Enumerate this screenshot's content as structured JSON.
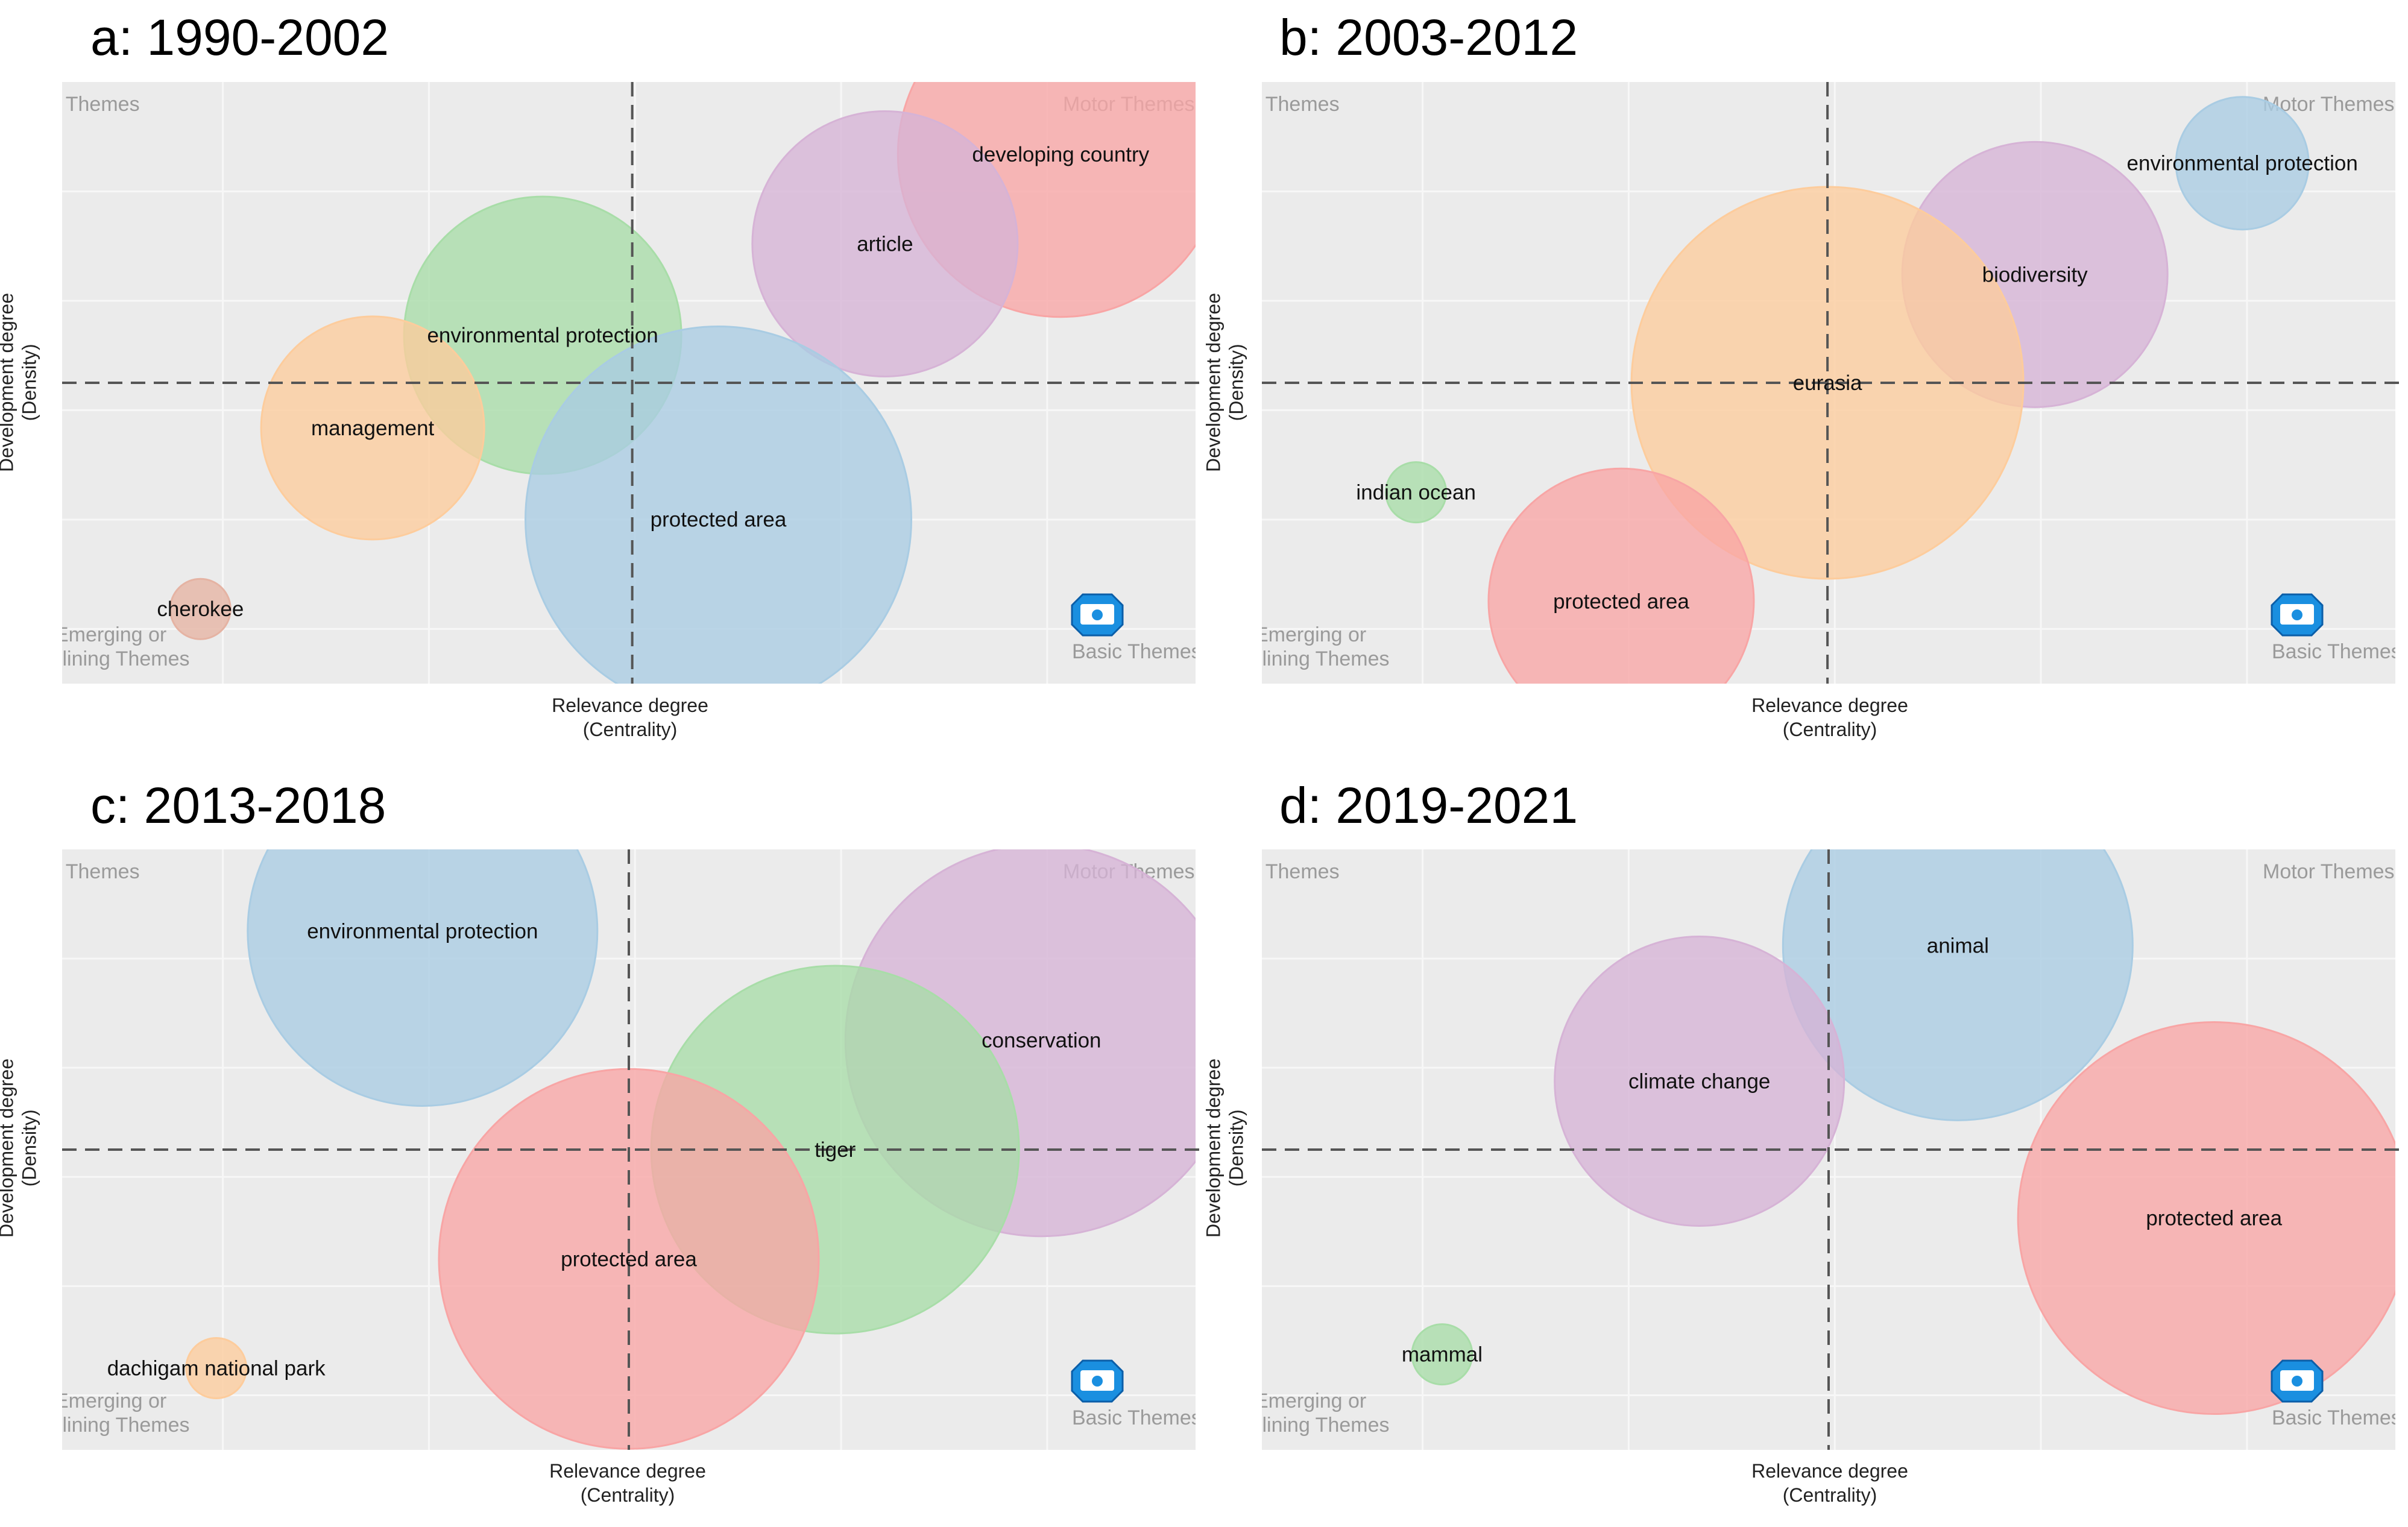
{
  "figure": {
    "panels": [
      "panel_a",
      "panel_b",
      "panel_c",
      "panel_d"
    ]
  },
  "chart_data": [
    {
      "id": "panel_a",
      "type": "scatter",
      "title": "a: 1990-2002",
      "xlabel_line1": "Relevance degree",
      "xlabel_line2": "(Centrality)",
      "ylabel_line1": "Development degree",
      "ylabel_line2": "(Density)",
      "quadrants": {
        "top_left": "Niche Themes",
        "top_right": "Motor Themes",
        "bottom_left_line1": "Emerging or",
        "bottom_left_line2": "Declining Themes",
        "bottom_right": "Basic Themes"
      },
      "xlim": [
        0,
        100
      ],
      "ylim": [
        0,
        100
      ],
      "x_divider": 50.3,
      "y_divider": 50,
      "points": [
        {
          "label": "developing country",
          "x": 88.1,
          "y": 88.0,
          "size": 108,
          "color": "#F8A5A5"
        },
        {
          "label": "article",
          "x": 72.6,
          "y": 73.1,
          "size": 88,
          "color": "#D6B3D6"
        },
        {
          "label": "environmental protection",
          "x": 42.4,
          "y": 57.9,
          "size": 92,
          "color": "#A8DDA8"
        },
        {
          "label": "management",
          "x": 27.4,
          "y": 42.5,
          "size": 74,
          "color": "#FDCC9C"
        },
        {
          "label": "protected area",
          "x": 57.9,
          "y": 27.3,
          "size": 128,
          "color": "#A9CCE3"
        },
        {
          "label": "cherokee",
          "x": 12.2,
          "y": 12.4,
          "size": 20,
          "color": "#E5B3A3"
        }
      ]
    },
    {
      "id": "panel_b",
      "type": "scatter",
      "title": "b: 2003-2012",
      "xlabel_line1": "Relevance degree",
      "xlabel_line2": "(Centrality)",
      "ylabel_line1": "Development degree",
      "ylabel_line2": "(Density)",
      "quadrants": {
        "top_left": "Niche Themes",
        "top_right": "Motor Themes",
        "bottom_left_line1": "Emerging or",
        "bottom_left_line2": "Declining Themes",
        "bottom_right": "Basic Themes"
      },
      "xlim": [
        0,
        100
      ],
      "ylim": [
        0,
        100
      ],
      "x_divider": 49.9,
      "y_divider": 50,
      "points": [
        {
          "label": "environmental protection",
          "x": 86.5,
          "y": 86.5,
          "size": 44,
          "color": "#A9CCE3"
        },
        {
          "label": "biodiversity",
          "x": 68.2,
          "y": 68.0,
          "size": 88,
          "color": "#D6B3D6"
        },
        {
          "label": "eurasia",
          "x": 49.9,
          "y": 50.0,
          "size": 130,
          "color": "#FDCC9C"
        },
        {
          "label": "indian ocean",
          "x": 13.6,
          "y": 31.8,
          "size": 20,
          "color": "#A8DDA8"
        },
        {
          "label": "protected area",
          "x": 31.7,
          "y": 13.7,
          "size": 88,
          "color": "#F8A5A5"
        }
      ]
    },
    {
      "id": "panel_c",
      "type": "scatter",
      "title": "c: 2013-2018",
      "xlabel_line1": "Relevance degree",
      "xlabel_line2": "(Centrality)",
      "ylabel_line1": "Development degree",
      "ylabel_line2": "(Density)",
      "quadrants": {
        "top_left": "Niche Themes",
        "top_right": "Motor Themes",
        "bottom_left_line1": "Emerging or",
        "bottom_left_line2": "Declining Themes",
        "bottom_right": "Basic Themes"
      },
      "xlim": [
        0,
        100
      ],
      "ylim": [
        0,
        100
      ],
      "x_divider": 50.0,
      "y_divider": 50,
      "points": [
        {
          "label": "environmental protection",
          "x": 31.8,
          "y": 86.4,
          "size": 116,
          "color": "#A9CCE3"
        },
        {
          "label": "conservation",
          "x": 86.4,
          "y": 68.2,
          "size": 130,
          "color": "#D6B3D6"
        },
        {
          "label": "tiger",
          "x": 68.2,
          "y": 50.0,
          "size": 122,
          "color": "#A8DDA8"
        },
        {
          "label": "protected area",
          "x": 50.0,
          "y": 31.8,
          "size": 126,
          "color": "#F8A5A5"
        },
        {
          "label": "dachigam national park",
          "x": 13.6,
          "y": 13.6,
          "size": 20,
          "color": "#FDCC9C"
        }
      ]
    },
    {
      "id": "panel_d",
      "type": "scatter",
      "title": "d: 2019-2021",
      "xlabel_line1": "Relevance degree",
      "xlabel_line2": "(Centrality)",
      "ylabel_line1": "Development degree",
      "ylabel_line2": "(Density)",
      "quadrants": {
        "top_left": "Niche Themes",
        "top_right": "Motor Themes",
        "bottom_left_line1": "Emerging or",
        "bottom_left_line2": "Declining Themes",
        "bottom_right": "Basic Themes"
      },
      "xlim": [
        0,
        100
      ],
      "ylim": [
        0,
        100
      ],
      "x_divider": 50.0,
      "y_divider": 50,
      "points": [
        {
          "label": "animal",
          "x": 61.4,
          "y": 84.0,
          "size": 116,
          "color": "#A9CCE3"
        },
        {
          "label": "climate change",
          "x": 38.6,
          "y": 61.4,
          "size": 96,
          "color": "#D6B3D6"
        },
        {
          "label": "protected area",
          "x": 84.0,
          "y": 38.6,
          "size": 130,
          "color": "#F8A5A5"
        },
        {
          "label": "mammal",
          "x": 15.9,
          "y": 15.9,
          "size": 20,
          "color": "#A8DDA8"
        }
      ]
    }
  ]
}
